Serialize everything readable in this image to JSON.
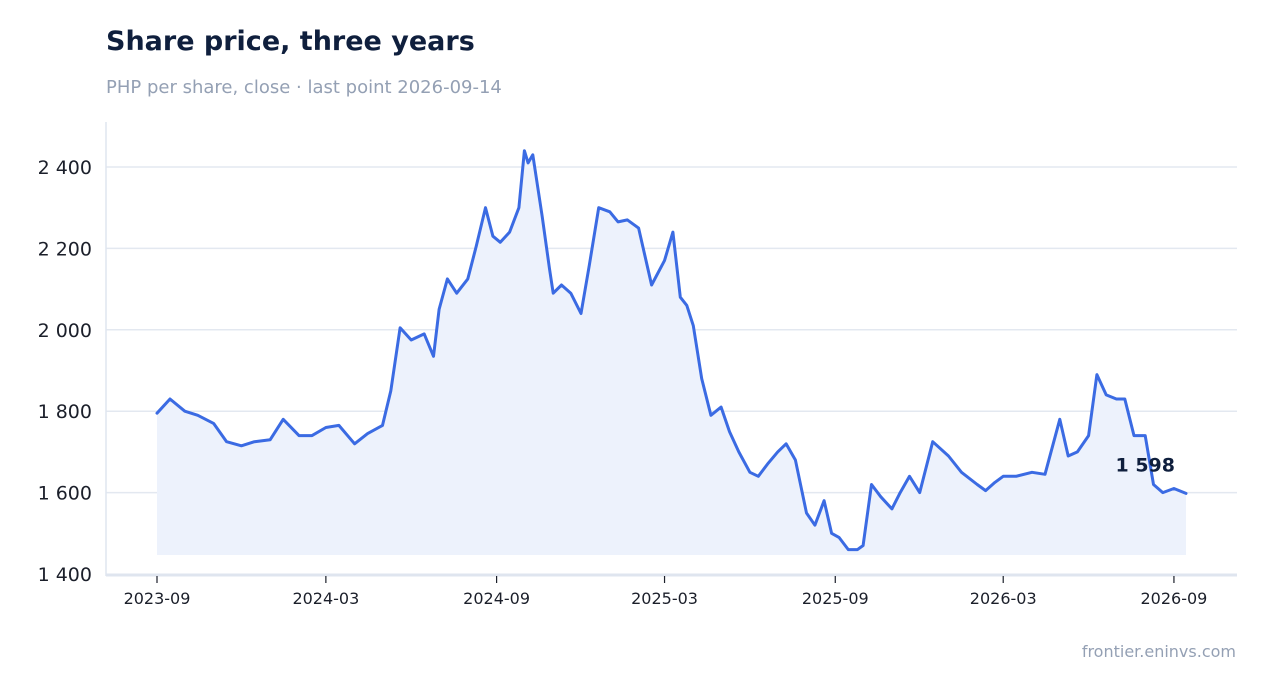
{
  "header": {
    "title": "Share price, three years",
    "subtitle": "PHP per share, close · last point 2026-09-14"
  },
  "footer": {
    "source": "frontier.eninvs.com"
  },
  "colors": {
    "line": "#3b6be3",
    "area": "#edf2fc",
    "grid": "#e3e8f0",
    "axis": "#dfe5ef"
  },
  "chart_data": {
    "type": "area",
    "title": "Share price, three years",
    "subtitle": "PHP per share, close · last point 2026-09-14",
    "xlabel": "",
    "ylabel": "",
    "ylim": [
      1400,
      2500
    ],
    "yticks": [
      1400,
      1600,
      1800,
      2000,
      2200,
      2400
    ],
    "ytick_labels": [
      "1 400",
      "1 600",
      "1 800",
      "2 000",
      "2 200",
      "2 400"
    ],
    "xlim": [
      "2023-09-01",
      "2026-09-14"
    ],
    "xticks": [
      "2023-09",
      "2024-03",
      "2024-09",
      "2025-03",
      "2025-09",
      "2026-03",
      "2026-09"
    ],
    "grid": true,
    "legend": "none",
    "end_label": "1 598",
    "series": [
      {
        "x": [
          "2023-09-01",
          "2023-09-15",
          "2023-10-01",
          "2023-10-15",
          "2023-11-01",
          "2023-11-15",
          "2023-12-01",
          "2023-12-15",
          "2024-01-01",
          "2024-01-15",
          "2024-02-01",
          "2024-02-15",
          "2024-03-01",
          "2024-03-15",
          "2024-04-01",
          "2024-04-15",
          "2024-05-01",
          "2024-05-10",
          "2024-05-20",
          "2024-06-01",
          "2024-06-15",
          "2024-06-25",
          "2024-07-01",
          "2024-07-10",
          "2024-07-20",
          "2024-08-01",
          "2024-08-10",
          "2024-08-20",
          "2024-08-28",
          "2024-09-05",
          "2024-09-15",
          "2024-09-25",
          "2024-10-01",
          "2024-10-05",
          "2024-10-10",
          "2024-10-20",
          "2024-10-28",
          "2024-11-01",
          "2024-11-10",
          "2024-11-20",
          "2024-12-01",
          "2024-12-10",
          "2024-12-20",
          "2025-01-01",
          "2025-01-10",
          "2025-01-20",
          "2025-02-01",
          "2025-02-15",
          "2025-03-01",
          "2025-03-10",
          "2025-03-18",
          "2025-03-25",
          "2025-04-01",
          "2025-04-10",
          "2025-04-20",
          "2025-05-01",
          "2025-05-10",
          "2025-05-20",
          "2025-06-01",
          "2025-06-10",
          "2025-06-20",
          "2025-07-01",
          "2025-07-10",
          "2025-07-20",
          "2025-08-01",
          "2025-08-10",
          "2025-08-20",
          "2025-08-28",
          "2025-09-05",
          "2025-09-15",
          "2025-09-25",
          "2025-10-01",
          "2025-10-10",
          "2025-10-20",
          "2025-11-01",
          "2025-11-10",
          "2025-11-20",
          "2025-12-01",
          "2025-12-15",
          "2026-01-01",
          "2026-01-15",
          "2026-02-01",
          "2026-02-10",
          "2026-02-20",
          "2026-03-01",
          "2026-03-15",
          "2026-04-01",
          "2026-04-15",
          "2026-05-01",
          "2026-05-10",
          "2026-05-20",
          "2026-06-01",
          "2026-06-10",
          "2026-06-20",
          "2026-07-01",
          "2026-07-10",
          "2026-07-20",
          "2026-08-01",
          "2026-08-10",
          "2026-08-20",
          "2026-09-01",
          "2026-09-14"
        ],
        "values": [
          1795,
          1830,
          1800,
          1790,
          1770,
          1725,
          1715,
          1725,
          1730,
          1780,
          1740,
          1740,
          1760,
          1765,
          1720,
          1745,
          1765,
          1850,
          2005,
          1975,
          1990,
          1935,
          2050,
          2125,
          2090,
          2125,
          2205,
          2300,
          2230,
          2215,
          2240,
          2300,
          2440,
          2410,
          2430,
          2280,
          2150,
          2090,
          2110,
          2090,
          2040,
          2160,
          2300,
          2290,
          2265,
          2270,
          2250,
          2110,
          2170,
          2240,
          2080,
          2060,
          2010,
          1880,
          1790,
          1810,
          1750,
          1700,
          1650,
          1640,
          1670,
          1700,
          1720,
          1680,
          1550,
          1520,
          1580,
          1500,
          1490,
          1460,
          1460,
          1470,
          1620,
          1590,
          1560,
          1600,
          1640,
          1600,
          1725,
          1690,
          1650,
          1620,
          1605,
          1625,
          1640,
          1640,
          1650,
          1645,
          1780,
          1690,
          1700,
          1740,
          1890,
          1840,
          1830,
          1830,
          1740,
          1740,
          1620,
          1600,
          1610,
          1598
        ]
      }
    ]
  }
}
